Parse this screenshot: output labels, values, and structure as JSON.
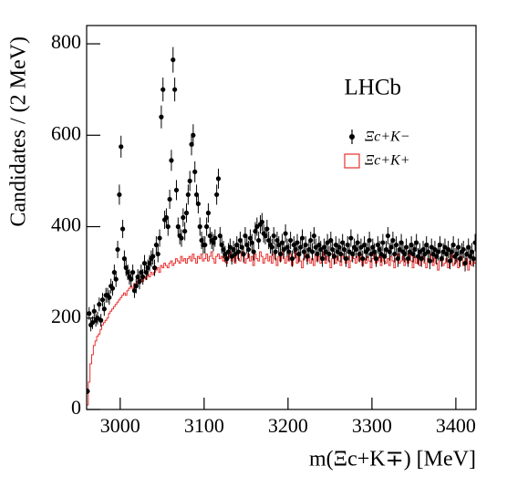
{
  "chart_data": {
    "type": "errorbar",
    "annotation": "LHCb",
    "x_label": "m(Ξc+K∓) [MeV]",
    "y_label": "Candidates / (2 MeV)",
    "xlim": [
      2960,
      3424
    ],
    "ylim": [
      0,
      840
    ],
    "xticks": [
      3000,
      3100,
      3200,
      3300,
      3400
    ],
    "yticks": [
      0,
      200,
      400,
      600,
      800
    ],
    "x": [
      2961,
      2963,
      2965,
      2967,
      2969,
      2971,
      2973,
      2975,
      2977,
      2979,
      2981,
      2983,
      2985,
      2987,
      2989,
      2991,
      2993,
      2995,
      2997,
      2999,
      3001,
      3003,
      3005,
      3007,
      3009,
      3011,
      3013,
      3015,
      3017,
      3019,
      3021,
      3023,
      3025,
      3027,
      3029,
      3031,
      3033,
      3035,
      3037,
      3039,
      3041,
      3043,
      3045,
      3047,
      3049,
      3051,
      3053,
      3055,
      3057,
      3059,
      3061,
      3063,
      3065,
      3067,
      3069,
      3071,
      3073,
      3075,
      3077,
      3079,
      3081,
      3083,
      3085,
      3087,
      3089,
      3091,
      3093,
      3095,
      3097,
      3099,
      3101,
      3103,
      3105,
      3107,
      3109,
      3111,
      3113,
      3115,
      3117,
      3119,
      3121,
      3123,
      3125,
      3127,
      3129,
      3131,
      3133,
      3135,
      3137,
      3139,
      3141,
      3143,
      3145,
      3147,
      3149,
      3151,
      3153,
      3155,
      3157,
      3159,
      3161,
      3163,
      3165,
      3167,
      3169,
      3171,
      3173,
      3175,
      3177,
      3179,
      3181,
      3183,
      3185,
      3187,
      3189,
      3191,
      3193,
      3195,
      3197,
      3199,
      3201,
      3203,
      3205,
      3207,
      3209,
      3211,
      3213,
      3215,
      3217,
      3219,
      3221,
      3223,
      3225,
      3227,
      3229,
      3231,
      3233,
      3235,
      3237,
      3239,
      3241,
      3243,
      3245,
      3247,
      3249,
      3251,
      3253,
      3255,
      3257,
      3259,
      3261,
      3263,
      3265,
      3267,
      3269,
      3271,
      3273,
      3275,
      3277,
      3279,
      3281,
      3283,
      3285,
      3287,
      3289,
      3291,
      3293,
      3295,
      3297,
      3299,
      3301,
      3303,
      3305,
      3307,
      3309,
      3311,
      3313,
      3315,
      3317,
      3319,
      3321,
      3323,
      3325,
      3327,
      3329,
      3331,
      3333,
      3335,
      3337,
      3339,
      3341,
      3343,
      3345,
      3347,
      3349,
      3351,
      3353,
      3355,
      3357,
      3359,
      3361,
      3363,
      3365,
      3367,
      3369,
      3371,
      3373,
      3375,
      3377,
      3379,
      3381,
      3383,
      3385,
      3387,
      3389,
      3391,
      3393,
      3395,
      3397,
      3399,
      3401,
      3403,
      3405,
      3407,
      3409,
      3411,
      3413,
      3415,
      3417,
      3419,
      3421,
      3423
    ],
    "series": [
      {
        "name": "Ξc+K−",
        "type": "errorbar",
        "color": "#000000",
        "values": [
          40,
          210,
          185,
          190,
          215,
          195,
          200,
          230,
          195,
          240,
          220,
          250,
          250,
          245,
          270,
          265,
          300,
          285,
          350,
          470,
          575,
          395,
          330,
          310,
          300,
          290,
          285,
          300,
          260,
          270,
          290,
          280,
          300,
          290,
          320,
          300,
          310,
          320,
          330,
          335,
          310,
          360,
          340,
          375,
          640,
          700,
          415,
          420,
          400,
          460,
          545,
          765,
          700,
          480,
          400,
          380,
          375,
          420,
          390,
          430,
          470,
          500,
          580,
          600,
          520,
          470,
          450,
          400,
          370,
          360,
          360,
          400,
          430,
          380,
          370,
          365,
          375,
          470,
          505,
          380,
          360,
          350,
          340,
          330,
          345,
          355,
          335,
          350,
          340,
          360,
          345,
          370,
          355,
          340,
          380,
          360,
          350,
          375,
          365,
          345,
          390,
          400,
          370,
          405,
          410,
          385,
          380,
          395,
          370,
          360,
          355,
          380,
          345,
          370,
          360,
          340,
          365,
          350,
          385,
          355,
          345,
          370,
          330,
          360,
          350,
          365,
          340,
          355,
          375,
          345,
          360,
          335,
          350,
          370,
          345,
          380,
          355,
          340,
          360,
          350,
          330,
          355,
          345,
          365,
          340,
          370,
          350,
          335,
          360,
          345,
          355,
          340,
          365,
          350,
          330,
          360,
          345,
          375,
          340,
          355,
          350,
          365,
          340,
          355,
          330,
          360,
          345,
          350,
          370,
          340,
          355,
          345,
          330,
          360,
          350,
          340,
          365,
          335,
          350,
          380,
          345,
          355,
          370,
          340,
          360,
          330,
          350,
          365,
          345,
          340,
          355,
          330,
          345,
          360,
          340,
          350,
          365,
          335,
          345,
          330,
          350,
          340,
          360,
          345,
          325,
          355,
          340,
          350,
          335,
          345,
          360,
          330,
          345,
          355,
          340,
          350,
          325,
          345,
          360,
          335,
          340,
          355,
          330,
          345,
          350,
          320,
          340,
          355,
          335,
          345,
          330,
          365
        ],
        "errors": [
          6,
          14,
          14,
          14,
          15,
          14,
          14,
          15,
          14,
          15,
          15,
          16,
          16,
          16,
          16,
          16,
          17,
          17,
          19,
          22,
          24,
          20,
          18,
          18,
          17,
          17,
          17,
          17,
          16,
          16,
          17,
          17,
          17,
          17,
          18,
          17,
          18,
          18,
          18,
          18,
          18,
          19,
          18,
          19,
          25,
          26,
          20,
          20,
          20,
          21,
          23,
          28,
          26,
          22,
          20,
          19,
          19,
          20,
          20,
          21,
          22,
          22,
          24,
          24,
          23,
          22,
          21,
          20,
          19,
          19,
          19,
          20,
          21,
          19,
          19,
          19,
          19,
          22,
          22,
          19,
          19,
          19,
          18,
          18,
          19,
          19,
          18,
          19,
          18,
          19,
          19,
          19,
          19,
          18,
          19,
          19,
          19,
          19,
          19,
          19,
          20,
          20,
          19,
          20,
          20,
          20,
          19,
          20,
          19,
          19,
          19,
          19,
          19,
          19,
          19,
          18,
          19,
          19,
          20,
          19,
          19,
          19,
          18,
          19,
          19,
          19,
          18,
          19,
          19,
          19,
          19,
          18,
          19,
          19,
          19,
          19,
          19,
          18,
          19,
          19,
          18,
          19,
          19,
          19,
          18,
          19,
          19,
          18,
          19,
          19,
          19,
          18,
          19,
          19,
          18,
          19,
          19,
          19,
          18,
          19,
          19,
          19,
          18,
          19,
          18,
          19,
          19,
          19,
          19,
          18,
          19,
          19,
          18,
          19,
          19,
          18,
          19,
          18,
          19,
          19,
          19,
          19,
          19,
          18,
          19,
          18,
          19,
          19,
          19,
          18,
          19,
          18,
          19,
          19,
          18,
          19,
          19,
          18,
          19,
          18,
          19,
          18,
          19,
          19,
          18,
          19,
          18,
          19,
          18,
          19,
          19,
          18,
          19,
          19,
          18,
          19,
          18,
          19,
          19,
          18,
          18,
          19,
          18,
          19,
          19,
          18,
          18,
          19,
          18,
          19,
          18,
          19
        ]
      },
      {
        "name": "Ξc+K+",
        "type": "step",
        "color": "#e8302f",
        "values": [
          10,
          60,
          100,
          120,
          140,
          150,
          160,
          165,
          175,
          185,
          190,
          195,
          200,
          210,
          215,
          220,
          225,
          230,
          235,
          240,
          245,
          250,
          255,
          250,
          260,
          265,
          270,
          265,
          275,
          270,
          280,
          275,
          285,
          280,
          290,
          285,
          295,
          290,
          300,
          295,
          300,
          305,
          310,
          300,
          315,
          310,
          320,
          315,
          310,
          320,
          325,
          315,
          320,
          330,
          325,
          320,
          335,
          325,
          330,
          320,
          330,
          335,
          325,
          340,
          330,
          320,
          335,
          330,
          340,
          325,
          330,
          340,
          325,
          335,
          345,
          330,
          320,
          335,
          340,
          330,
          335,
          325,
          340,
          320,
          330,
          345,
          325,
          335,
          320,
          340,
          330,
          325,
          345,
          335,
          320,
          330,
          340,
          325,
          335,
          315,
          340,
          330,
          325,
          345,
          335,
          320,
          330,
          340,
          325,
          335,
          320,
          340,
          330,
          315,
          335,
          325,
          345,
          330,
          320,
          335,
          325,
          340,
          315,
          330,
          345,
          320,
          335,
          325,
          310,
          330,
          340,
          325,
          335,
          320,
          330,
          315,
          340,
          325,
          335,
          320,
          330,
          345,
          320,
          335,
          325,
          310,
          330,
          340,
          320,
          335,
          325,
          315,
          340,
          330,
          320,
          335,
          310,
          325,
          340,
          330,
          320,
          335,
          325,
          340,
          315,
          330,
          320,
          335,
          325,
          310,
          330,
          345,
          320,
          325,
          335,
          315,
          340,
          325,
          320,
          330,
          315,
          335,
          325,
          310,
          330,
          340,
          320,
          325,
          335,
          315,
          330,
          320,
          340,
          325,
          310,
          335,
          320,
          330,
          315,
          325,
          335,
          320,
          310,
          330,
          325,
          340,
          315,
          330,
          320,
          305,
          325,
          335,
          315,
          320,
          330,
          310,
          325,
          340,
          315,
          320,
          330,
          310,
          325,
          335,
          315,
          320,
          330,
          305,
          325,
          315,
          330,
          320
        ]
      }
    ]
  }
}
